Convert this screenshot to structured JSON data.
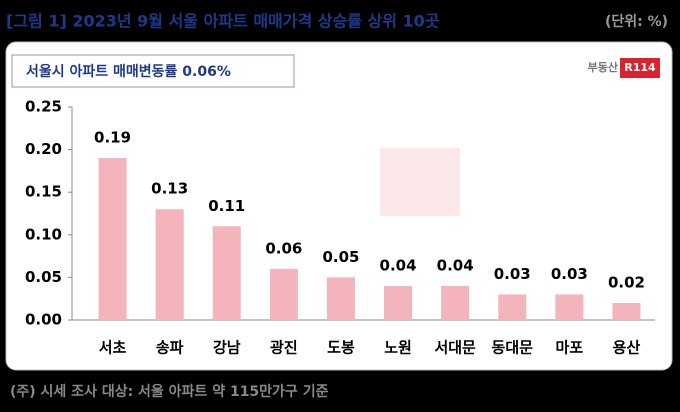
{
  "header": {
    "title": "[그림 1] 2023년 9월 서울 아파트 매매가격 상승률 상위 10곳",
    "unit": "(단위: %)"
  },
  "footer": {
    "note": "(주) 시세 조사 대상: 서울 아파트 약 115만가구 기준"
  },
  "logo": {
    "text": "부동산",
    "badge": "R114"
  },
  "chart_data": {
    "type": "bar",
    "subtitle": "서울시 아파트 매매변동률 0.06%",
    "categories": [
      "서초",
      "송파",
      "강남",
      "광진",
      "도봉",
      "노원",
      "서대문",
      "동대문",
      "마포",
      "용산"
    ],
    "values": [
      0.19,
      0.13,
      0.11,
      0.06,
      0.05,
      0.04,
      0.04,
      0.03,
      0.03,
      0.02
    ],
    "color": "#f4b4bb",
    "ylim": [
      0,
      0.25
    ],
    "yticks": [
      {
        "value": 0,
        "label": "0.00"
      },
      0.05,
      {
        "value": 0.1,
        "label": "0.10"
      },
      0.15,
      {
        "value": 0.2,
        "label": "0.20"
      },
      0.25
    ],
    "grid": false
  }
}
